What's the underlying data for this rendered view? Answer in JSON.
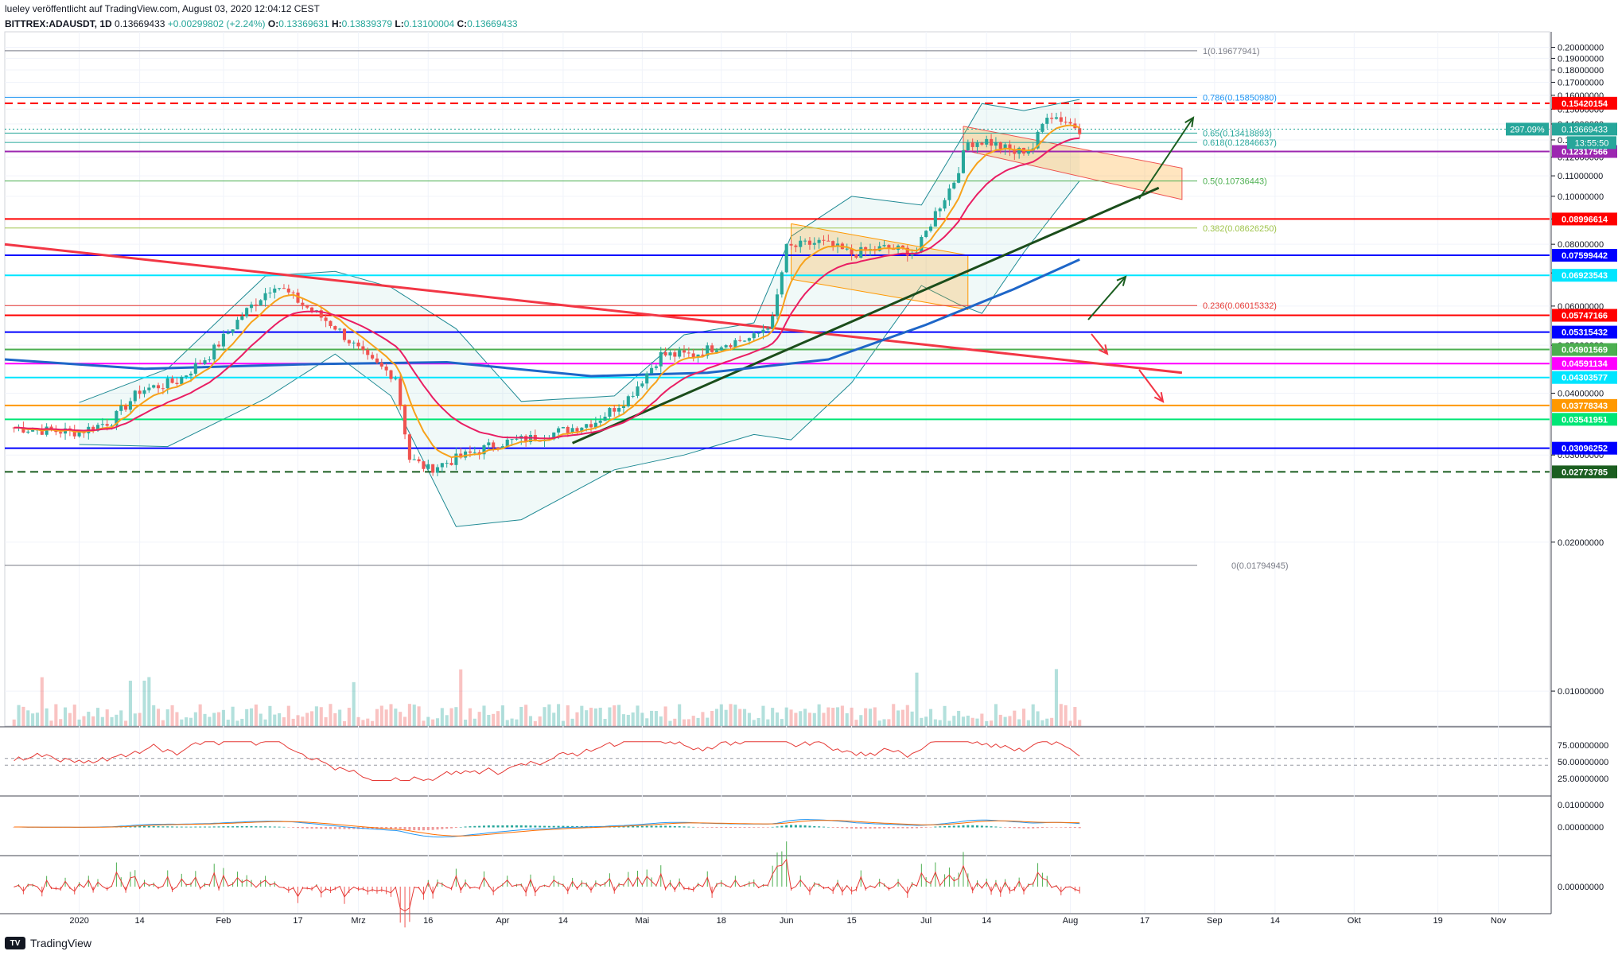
{
  "header": {
    "line1": "lueley veröffentlicht auf TradingView.com, August 03, 2020 12:04:12 CEST",
    "symbol": "BITTREX:ADAUSDT, 1D",
    "last": "0.13669433",
    "change": "+0.00299802 (+2.24%)",
    "o_label": "O:",
    "o": "0.13369631",
    "h_label": "H:",
    "h": "0.13839379",
    "l_label": "L:",
    "l": "0.13100004",
    "c_label": "C:",
    "c": "0.13669433"
  },
  "logo": {
    "text": "TradingView",
    "mark": "TV"
  },
  "colors": {
    "up": "#26a69a",
    "down": "#ef5350",
    "red": "#ff0000",
    "blue": "#0000ff",
    "cyan": "#00e5ff",
    "purple": "#9c27b0",
    "magenta": "#ff00ff",
    "orange": "#ff9800",
    "green": "#00e676",
    "darkgreen": "#1b5e20",
    "ma200": "#1e66c8",
    "fib": "#2196f3"
  },
  "chart_data": [
    {
      "type": "line",
      "name": "price",
      "y_scale": "log",
      "ylim": [
        0.0085,
        0.215
      ],
      "y_ticks": [
        "0.20000000",
        "0.19000000",
        "0.18000000",
        "0.17000000",
        "0.16000000",
        "0.15000000",
        "0.14000000",
        "0.13000000",
        "0.12000000",
        "0.11000000",
        "0.10000000",
        "0.09000000",
        "0.08000000",
        "0.07000000",
        "0.06000000",
        "0.05000000",
        "0.04000000",
        "0.03000000",
        "0.02000000",
        "0.01000000"
      ],
      "x_ticks": [
        {
          "label": "2020",
          "date": "2020-01-01"
        },
        {
          "label": "14",
          "date": "2020-01-14"
        },
        {
          "label": "Feb",
          "date": "2020-02-01"
        },
        {
          "label": "17",
          "date": "2020-02-17"
        },
        {
          "label": "Mrz",
          "date": "2020-03-01"
        },
        {
          "label": "16",
          "date": "2020-03-16"
        },
        {
          "label": "Apr",
          "date": "2020-04-01"
        },
        {
          "label": "14",
          "date": "2020-04-14"
        },
        {
          "label": "Mai",
          "date": "2020-05-01"
        },
        {
          "label": "18",
          "date": "2020-05-18"
        },
        {
          "label": "Jun",
          "date": "2020-06-01"
        },
        {
          "label": "15",
          "date": "2020-06-15"
        },
        {
          "label": "Jul",
          "date": "2020-07-01"
        },
        {
          "label": "14",
          "date": "2020-07-14"
        },
        {
          "label": "Aug",
          "date": "2020-08-01"
        },
        {
          "label": "17",
          "date": "2020-08-17"
        },
        {
          "label": "Sep",
          "date": "2020-09-01"
        },
        {
          "label": "14",
          "date": "2020-09-14"
        },
        {
          "label": "Okt",
          "date": "2020-10-01"
        },
        {
          "label": "19",
          "date": "2020-10-19"
        },
        {
          "label": "Nov",
          "date": "2020-11-01"
        }
      ],
      "x_range": [
        "2019-12-16",
        "2020-11-12"
      ],
      "close_series": [
        [
          "2019-12-18",
          0.0341
        ],
        [
          "2019-12-25",
          0.0336
        ],
        [
          "2020-01-01",
          0.0334
        ],
        [
          "2020-01-08",
          0.0352
        ],
        [
          "2020-01-14",
          0.0405
        ],
        [
          "2020-01-22",
          0.0423
        ],
        [
          "2020-01-29",
          0.0478
        ],
        [
          "2020-02-05",
          0.0575
        ],
        [
          "2020-02-12",
          0.0666
        ],
        [
          "2020-02-18",
          0.0605
        ],
        [
          "2020-02-25",
          0.0545
        ],
        [
          "2020-03-03",
          0.0468
        ],
        [
          "2020-03-09",
          0.0432
        ],
        [
          "2020-03-12",
          0.0295
        ],
        [
          "2020-03-16",
          0.0281
        ],
        [
          "2020-03-23",
          0.0297
        ],
        [
          "2020-03-31",
          0.0317
        ],
        [
          "2020-04-07",
          0.0324
        ],
        [
          "2020-04-14",
          0.0336
        ],
        [
          "2020-04-21",
          0.0351
        ],
        [
          "2020-04-28",
          0.0392
        ],
        [
          "2020-05-05",
          0.0478
        ],
        [
          "2020-05-12",
          0.0478
        ],
        [
          "2020-05-18",
          0.0503
        ],
        [
          "2020-05-25",
          0.0518
        ],
        [
          "2020-05-29",
          0.0562
        ],
        [
          "2020-06-01",
          0.0785
        ],
        [
          "2020-06-08",
          0.0808
        ],
        [
          "2020-06-15",
          0.0765
        ],
        [
          "2020-06-22",
          0.0786
        ],
        [
          "2020-06-29",
          0.0772
        ],
        [
          "2020-07-03",
          0.0925
        ],
        [
          "2020-07-07",
          0.1075
        ],
        [
          "2020-07-10",
          0.1285
        ],
        [
          "2020-07-14",
          0.1295
        ],
        [
          "2020-07-20",
          0.1225
        ],
        [
          "2020-07-24",
          0.1255
        ],
        [
          "2020-07-27",
          0.1472
        ],
        [
          "2020-07-31",
          0.142
        ],
        [
          "2020-08-03",
          0.1367
        ]
      ],
      "bollinger_upper": [
        [
          "2020-01-01",
          0.0383
        ],
        [
          "2020-01-20",
          0.0448
        ],
        [
          "2020-02-10",
          0.069
        ],
        [
          "2020-02-25",
          0.0705
        ],
        [
          "2020-03-08",
          0.0655
        ],
        [
          "2020-03-22",
          0.054
        ],
        [
          "2020-04-05",
          0.0385
        ],
        [
          "2020-04-25",
          0.0395
        ],
        [
          "2020-05-10",
          0.0525
        ],
        [
          "2020-05-25",
          0.0555
        ],
        [
          "2020-06-02",
          0.083
        ],
        [
          "2020-06-15",
          0.1
        ],
        [
          "2020-06-30",
          0.096
        ],
        [
          "2020-07-08",
          0.128
        ],
        [
          "2020-07-13",
          0.154
        ],
        [
          "2020-07-22",
          0.149
        ],
        [
          "2020-08-03",
          0.157
        ]
      ],
      "bollinger_lower": [
        [
          "2020-01-01",
          0.0315
        ],
        [
          "2020-01-20",
          0.0312
        ],
        [
          "2020-02-10",
          0.039
        ],
        [
          "2020-02-25",
          0.048
        ],
        [
          "2020-03-08",
          0.0395
        ],
        [
          "2020-03-22",
          0.0215
        ],
        [
          "2020-04-05",
          0.0222
        ],
        [
          "2020-04-25",
          0.028
        ],
        [
          "2020-05-10",
          0.03
        ],
        [
          "2020-05-25",
          0.033
        ],
        [
          "2020-06-02",
          0.0322
        ],
        [
          "2020-06-15",
          0.042
        ],
        [
          "2020-06-30",
          0.066
        ],
        [
          "2020-07-08",
          0.0605
        ],
        [
          "2020-07-13",
          0.058
        ],
        [
          "2020-07-22",
          0.077
        ],
        [
          "2020-08-03",
          0.1075
        ]
      ],
      "ma200": [
        [
          "2019-12-16",
          0.0468
        ],
        [
          "2020-01-15",
          0.0448
        ],
        [
          "2020-02-20",
          0.0458
        ],
        [
          "2020-03-20",
          0.0462
        ],
        [
          "2020-04-20",
          0.0433
        ],
        [
          "2020-05-15",
          0.044
        ],
        [
          "2020-06-10",
          0.0468
        ],
        [
          "2020-07-01",
          0.055
        ],
        [
          "2020-07-20",
          0.065
        ],
        [
          "2020-08-03",
          0.0745
        ]
      ],
      "fib_levels": [
        {
          "label": "1(0.19677941)",
          "value": 0.19677941
        },
        {
          "label": "0.786(0.15850980)",
          "value": 0.1585098
        },
        {
          "label": "0.65(0.13418893)",
          "value": 0.13418893
        },
        {
          "label": "0.618(0.12846637)",
          "value": 0.12846637
        },
        {
          "label": "0.5(0.10736443)",
          "value": 0.10736443
        },
        {
          "label": "0.382(0.08626250)",
          "value": 0.0862625
        },
        {
          "label": "0.236(0.06015332)",
          "value": 0.06015332
        },
        {
          "label": "0(0.01794945)",
          "value": 0.01794945
        }
      ],
      "horizontal_levels": [
        {
          "label": "0.15420154",
          "value": 0.15420154,
          "color": "#ff0000",
          "dashed": true
        },
        {
          "label": "0.12317566",
          "value": 0.12317566,
          "color": "#9c27b0"
        },
        {
          "label": "0.08996614",
          "value": 0.08996614,
          "color": "#ff0000"
        },
        {
          "label": "0.07599442",
          "value": 0.07599442,
          "color": "#0000ff"
        },
        {
          "label": "0.06923543",
          "value": 0.06923543,
          "color": "#00e5ff"
        },
        {
          "label": "0.05747166",
          "value": 0.05747166,
          "color": "#ff0000"
        },
        {
          "label": "0.05315432",
          "value": 0.05315432,
          "color": "#0000ff"
        },
        {
          "label": "0.04901569",
          "value": 0.04901569,
          "color": "#4caf50"
        },
        {
          "label": "0.04591134",
          "value": 0.04591134,
          "color": "#ff00ff"
        },
        {
          "label": "0.04303577",
          "value": 0.04303577,
          "color": "#00e5ff"
        },
        {
          "label": "0.03778343",
          "value": 0.03778343,
          "color": "#ff9800"
        },
        {
          "label": "0.03541951",
          "value": 0.03541951,
          "color": "#00e676"
        },
        {
          "label": "0.03096252",
          "value": 0.03096252,
          "color": "#0000ff"
        },
        {
          "label": "0.02773785",
          "value": 0.02773785,
          "color": "#1b5e20",
          "dashed": true
        }
      ],
      "price_tag": {
        "percent": "297.09%",
        "value": "0.13669433",
        "countdown": "13:55:50"
      }
    },
    {
      "type": "line",
      "name": "rsi",
      "y_ticks": [
        "75.00000000",
        "50.00000000",
        "25.00000000"
      ]
    },
    {
      "type": "line",
      "name": "macd",
      "y_ticks": [
        "0.01000000",
        "0.00000000"
      ]
    },
    {
      "type": "bar",
      "name": "histogram",
      "y_ticks": [
        "0.00000000"
      ]
    }
  ]
}
